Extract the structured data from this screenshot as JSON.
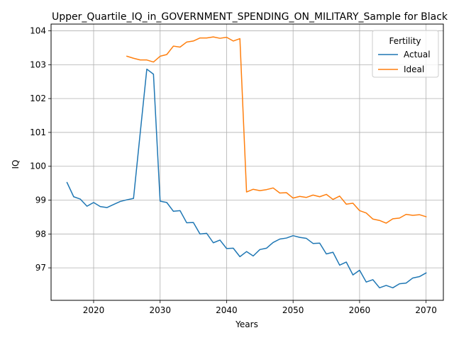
{
  "chart_data": {
    "type": "line",
    "title": "Upper_Quartile_IQ_in_GOVERNMENT_SPENDING_ON_MILITARY_Sample for Black",
    "xlabel": "Years",
    "ylabel": "IQ",
    "xlim": [
      2013.6,
      2072.6
    ],
    "ylim": [
      96.04,
      104.2
    ],
    "xticks": [
      2020,
      2030,
      2040,
      2050,
      2060,
      2070
    ],
    "yticks": [
      97,
      98,
      99,
      100,
      101,
      102,
      103,
      104
    ],
    "grid": true,
    "legend": {
      "title": "Fertility",
      "position": "top-right"
    },
    "series": [
      {
        "name": "Actual",
        "color": "#1f77b4",
        "x": [
          2016,
          2017,
          2018,
          2019,
          2020,
          2021,
          2022,
          2023,
          2024,
          2025,
          2026,
          2027,
          2028,
          2029,
          2030,
          2031,
          2032,
          2033,
          2034,
          2035,
          2036,
          2037,
          2038,
          2039,
          2040,
          2041,
          2042,
          2043,
          2044,
          2045,
          2046,
          2047,
          2048,
          2049,
          2050,
          2051,
          2052,
          2053,
          2054,
          2055,
          2056,
          2057,
          2058,
          2059,
          2060,
          2061,
          2062,
          2063,
          2064,
          2065,
          2066,
          2067,
          2068,
          2069,
          2070
        ],
        "y": [
          99.52,
          99.1,
          99.03,
          98.82,
          98.93,
          98.81,
          98.78,
          98.87,
          98.96,
          99.01,
          99.05,
          100.97,
          102.87,
          102.72,
          98.97,
          98.93,
          98.67,
          98.69,
          98.33,
          98.34,
          98.0,
          98.02,
          97.74,
          97.82,
          97.57,
          97.58,
          97.33,
          97.48,
          97.35,
          97.54,
          97.58,
          97.75,
          97.85,
          97.88,
          97.95,
          97.9,
          97.87,
          97.72,
          97.73,
          97.41,
          97.46,
          97.08,
          97.17,
          96.79,
          96.93,
          96.58,
          96.65,
          96.41,
          96.48,
          96.41,
          96.53,
          96.55,
          96.7,
          96.74,
          96.85
        ]
      },
      {
        "name": "Ideal",
        "color": "#ff7f0e",
        "x": [
          2025,
          2026,
          2027,
          2028,
          2029,
          2030,
          2031,
          2032,
          2033,
          2034,
          2035,
          2036,
          2037,
          2038,
          2039,
          2040,
          2041,
          2042,
          2043,
          2044,
          2045,
          2046,
          2047,
          2048,
          2049,
          2050,
          2051,
          2052,
          2053,
          2054,
          2055,
          2056,
          2057,
          2058,
          2059,
          2060,
          2061,
          2062,
          2063,
          2064,
          2065,
          2066,
          2067,
          2068,
          2069,
          2070
        ],
        "y": [
          103.25,
          103.19,
          103.14,
          103.14,
          103.08,
          103.25,
          103.3,
          103.55,
          103.52,
          103.67,
          103.7,
          103.79,
          103.79,
          103.82,
          103.78,
          103.81,
          103.7,
          103.77,
          99.24,
          99.32,
          99.28,
          99.31,
          99.36,
          99.21,
          99.22,
          99.06,
          99.11,
          99.08,
          99.15,
          99.1,
          99.17,
          99.02,
          99.12,
          98.88,
          98.91,
          98.69,
          98.62,
          98.44,
          98.4,
          98.32,
          98.45,
          98.47,
          98.58,
          98.55,
          98.57,
          98.51
        ]
      }
    ]
  }
}
